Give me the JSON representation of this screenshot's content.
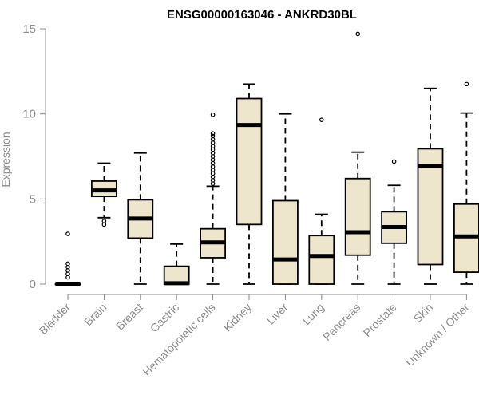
{
  "chart_data": {
    "type": "box",
    "title": "ENSG00000163046 - ANKRD30BL",
    "xlabel": "",
    "ylabel": "Expression",
    "ylim": [
      0,
      15
    ],
    "yticks": [
      0,
      5,
      10,
      15
    ],
    "grid": false,
    "categories": [
      "Bladder",
      "Brain",
      "Breast",
      "Gastric",
      "Hematopoietic cells",
      "Kidney",
      "Liver",
      "Lung",
      "Pancreas",
      "Prostate",
      "Skin",
      "Unknown / Other"
    ],
    "boxes": [
      {
        "name": "Bladder",
        "min": 0,
        "q1": 0,
        "median": 0,
        "q3": 0,
        "max": 0,
        "outliers": [
          0.4,
          0.6,
          0.8,
          1.0,
          1.2,
          2.95
        ]
      },
      {
        "name": "Brain",
        "min": 3.9,
        "q1": 5.15,
        "median": 5.5,
        "q3": 6.05,
        "max": 7.1,
        "outliers": [
          3.5,
          3.7
        ]
      },
      {
        "name": "Breast",
        "min": 0,
        "q1": 2.7,
        "median": 3.85,
        "q3": 4.95,
        "max": 7.7,
        "outliers": []
      },
      {
        "name": "Gastric",
        "min": 0,
        "q1": 0,
        "median": 0.05,
        "q3": 1.05,
        "max": 2.35,
        "outliers": []
      },
      {
        "name": "Hematopoietic cells",
        "min": 0,
        "q1": 1.55,
        "median": 2.45,
        "q3": 3.25,
        "max": 5.75,
        "outliers": [
          5.9,
          6.1,
          6.3,
          6.5,
          6.7,
          6.9,
          7.1,
          7.3,
          7.5,
          7.7,
          7.9,
          8.1,
          8.3,
          8.5,
          8.7,
          8.85,
          9.95
        ]
      },
      {
        "name": "Kidney",
        "min": 0,
        "q1": 3.5,
        "median": 9.35,
        "q3": 10.9,
        "max": 11.75,
        "outliers": []
      },
      {
        "name": "Liver",
        "min": 0,
        "q1": 0,
        "median": 1.45,
        "q3": 4.9,
        "max": 10.0,
        "outliers": []
      },
      {
        "name": "Lung",
        "min": 0,
        "q1": 0,
        "median": 1.65,
        "q3": 2.85,
        "max": 4.1,
        "outliers": [
          9.65
        ]
      },
      {
        "name": "Pancreas",
        "min": 0,
        "q1": 1.7,
        "median": 3.05,
        "q3": 6.2,
        "max": 7.75,
        "outliers": [
          14.7
        ]
      },
      {
        "name": "Prostate",
        "min": 0,
        "q1": 2.4,
        "median": 3.35,
        "q3": 4.25,
        "max": 5.8,
        "outliers": [
          7.2
        ]
      },
      {
        "name": "Skin",
        "min": 0,
        "q1": 1.15,
        "median": 6.95,
        "q3": 7.95,
        "max": 11.5,
        "outliers": []
      },
      {
        "name": "Unknown / Other",
        "min": 0,
        "q1": 0.7,
        "median": 2.8,
        "q3": 4.7,
        "max": 10.05,
        "outliers": [
          11.75
        ]
      }
    ],
    "colors": {
      "box_fill": "#ede6cc",
      "stroke": "#000000",
      "axis": "#8c8c8c"
    }
  }
}
